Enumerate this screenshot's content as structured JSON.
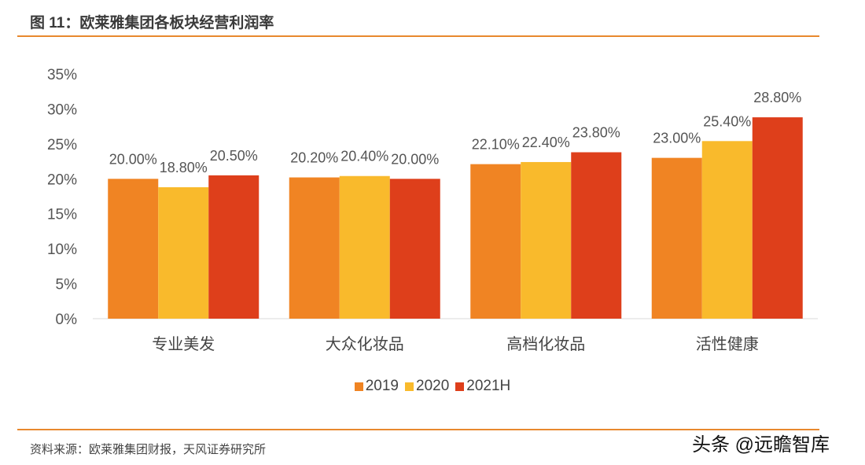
{
  "title": "图 11：欧莱雅集团各板块经营利润率",
  "source": "资料来源：欧莱雅集团财报，天风证券研究所",
  "watermark": "头条 @远瞻智库",
  "chart_data": {
    "type": "bar",
    "categories": [
      "专业美发",
      "大众化妆品",
      "高档化妆品",
      "活性健康"
    ],
    "series": [
      {
        "name": "2019",
        "color": "#F08423",
        "values": [
          20.0,
          20.2,
          22.1,
          23.0
        ]
      },
      {
        "name": "2020",
        "color": "#F9BA2C",
        "values": [
          18.8,
          20.4,
          22.4,
          25.4
        ]
      },
      {
        "name": "2021H",
        "color": "#DE3F1B",
        "values": [
          20.5,
          20.0,
          23.8,
          28.8
        ]
      }
    ],
    "yticks": [
      "0%",
      "5%",
      "10%",
      "15%",
      "20%",
      "25%",
      "30%",
      "35%"
    ],
    "ylim": [
      0,
      35
    ],
    "grid": false,
    "legend": "bottom",
    "data_labels": [
      [
        "20.00%",
        "20.20%",
        "22.10%",
        "23.00%"
      ],
      [
        "18.80%",
        "20.40%",
        "22.40%",
        "25.40%"
      ],
      [
        "20.50%",
        "20.00%",
        "23.80%",
        "28.80%"
      ]
    ]
  }
}
